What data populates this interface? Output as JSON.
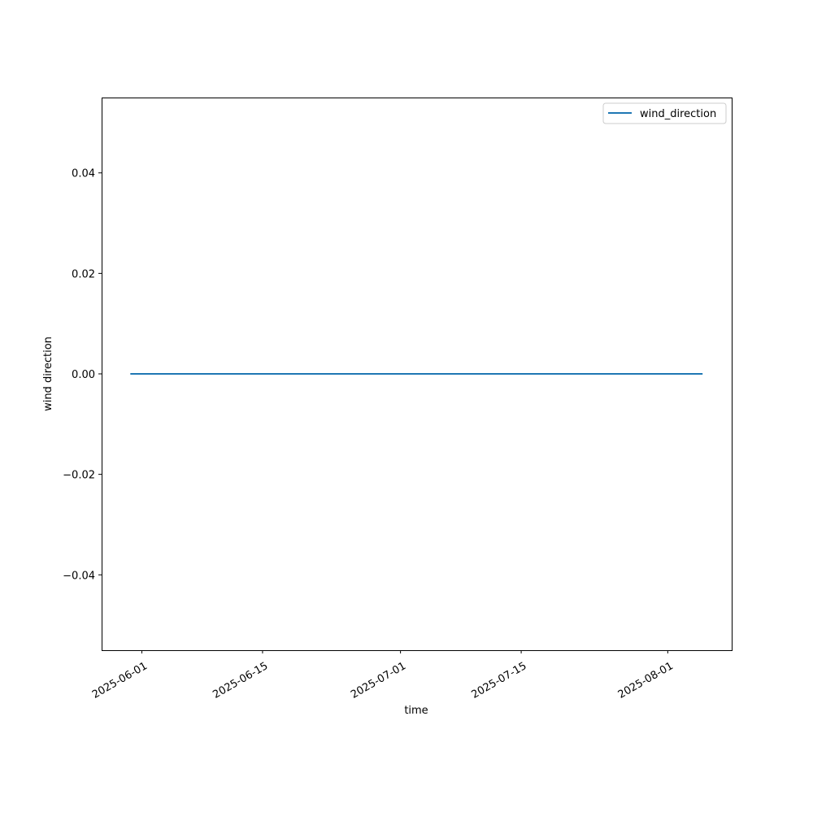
{
  "chart_data": {
    "type": "line",
    "title": "",
    "xlabel": "time",
    "ylabel": "wind direction",
    "x_type": "date",
    "xlim": [
      "2025-05-27T08:00",
      "2025-08-08T10:00"
    ],
    "ylim": [
      -0.055,
      0.055
    ],
    "x_ticks": [
      "2025-06-01",
      "2025-06-15",
      "2025-07-01",
      "2025-07-15",
      "2025-08-01"
    ],
    "y_ticks": [
      -0.04,
      -0.02,
      0.0,
      0.02,
      0.04
    ],
    "y_tick_labels": [
      "−0.04",
      "−0.02",
      "0.00",
      "0.02",
      "0.04"
    ],
    "grid": false,
    "legend": "top-right",
    "series": [
      {
        "name": "wind_direction",
        "color": "#1f77b4",
        "x": [
          "2025-05-30T16:00",
          "2025-08-05T01:00"
        ],
        "y": [
          0,
          0
        ]
      }
    ]
  }
}
